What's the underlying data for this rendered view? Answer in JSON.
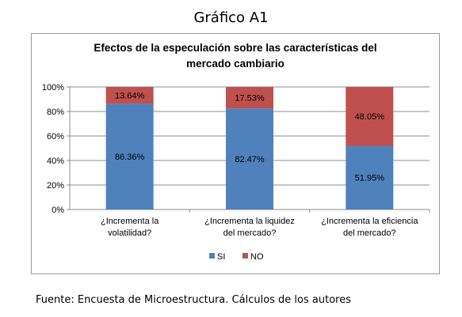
{
  "figure": {
    "label": "Gráfico A1",
    "source": "Fuente: Encuesta de Microestructura. Cálculos de los autores"
  },
  "chart_data": {
    "type": "bar",
    "stacked": true,
    "percent_stacked": true,
    "title_lines": [
      "Efectos de la especulación sobre las características del",
      "mercado cambiario"
    ],
    "categories": [
      [
        "¿Incrementa la",
        "volatilidad?"
      ],
      [
        "¿Incrementa la liquidez",
        "del mercado?"
      ],
      [
        "¿Incrementa la eficiencia",
        "del mercado?"
      ]
    ],
    "series": [
      {
        "name": "SI",
        "color": "#4f81bd",
        "values": [
          86.36,
          82.47,
          51.95
        ],
        "labels": [
          "86.36%",
          "82.47%",
          "51.95%"
        ]
      },
      {
        "name": "NO",
        "color": "#c0504d",
        "values": [
          13.64,
          17.53,
          48.05
        ],
        "labels": [
          "13.64%",
          "17.53%",
          "48.05%"
        ]
      }
    ],
    "ylim": [
      0,
      100
    ],
    "yticks": [
      "0%",
      "20%",
      "40%",
      "60%",
      "80%",
      "100%"
    ],
    "grid": true,
    "legend": "bottom"
  }
}
